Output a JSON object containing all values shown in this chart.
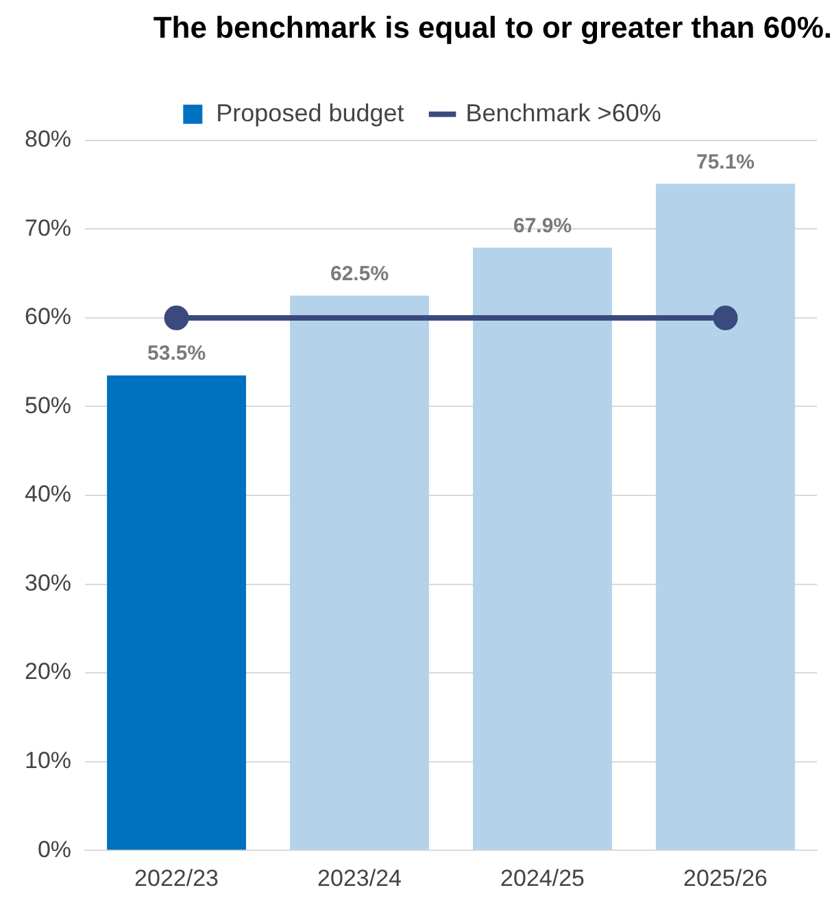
{
  "chart_data": {
    "type": "bar",
    "title": "The benchmark is equal to or greater than 60%.",
    "categories": [
      "2022/23",
      "2023/24",
      "2024/25",
      "2025/26"
    ],
    "series": [
      {
        "name": "Proposed budget",
        "color": "#0070c0",
        "colors": [
          "#0070c0",
          "#b4d3ea",
          "#b4d3ea",
          "#b4d3ea"
        ],
        "values": [
          53.5,
          62.5,
          67.9,
          75.1
        ],
        "value_labels": [
          "53.5%",
          "62.5%",
          "67.9%",
          "75.1%"
        ]
      },
      {
        "name": "Benchmark >60%",
        "type": "line",
        "color": "#3b4a7e",
        "values": [
          60,
          60,
          60,
          60
        ],
        "marker": "circle"
      }
    ],
    "ylim": [
      0,
      80
    ],
    "yticks": [
      {
        "value": 0,
        "label": "0%"
      },
      {
        "value": 10,
        "label": "10%"
      },
      {
        "value": 20,
        "label": "20%"
      },
      {
        "value": 30,
        "label": "30%"
      },
      {
        "value": 40,
        "label": "40%"
      },
      {
        "value": 50,
        "label": "50%"
      },
      {
        "value": 60,
        "label": "60%"
      },
      {
        "value": 70,
        "label": "70%"
      },
      {
        "value": 80,
        "label": "80%"
      }
    ],
    "grid": "y",
    "legend": "top"
  }
}
